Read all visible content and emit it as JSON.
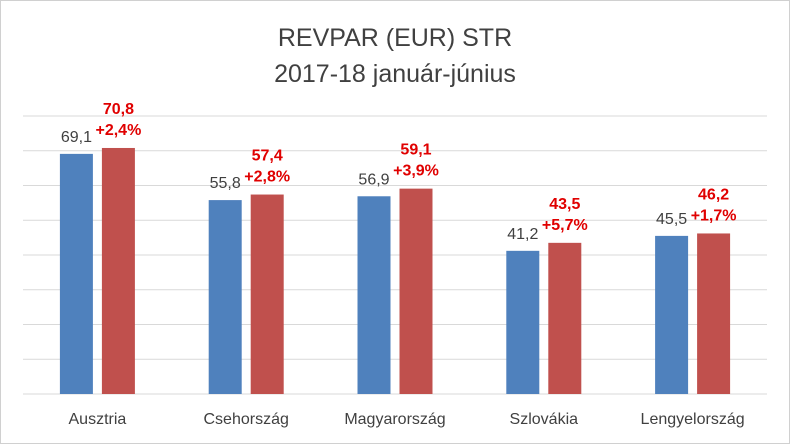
{
  "chart_data": {
    "type": "bar",
    "title": "REVPAR (EUR) STR",
    "subtitle": "2017-18 január-június",
    "categories": [
      "Ausztria",
      "Csehország",
      "Magyarország",
      "Szlovákia",
      "Lengyelország"
    ],
    "series": [
      {
        "values": [
          69.1,
          55.8,
          56.9,
          41.2,
          45.5
        ],
        "labels": [
          "69,1",
          "55,8",
          "56,9",
          "41,2",
          "45,5"
        ],
        "color": "#4f81bd"
      },
      {
        "values": [
          70.8,
          57.4,
          59.1,
          43.5,
          46.2
        ],
        "labels": [
          "70,8",
          "57,4",
          "59,1",
          "43,5",
          "46,2"
        ],
        "change_labels": [
          "+2,4%",
          "+2,8%",
          "+3,9%",
          "+5,7%",
          "+1,7%"
        ],
        "color": "#c0504d"
      }
    ],
    "ylim": [
      0,
      80
    ],
    "grid": true,
    "grid_color": "#d9d9d9",
    "label_color": "#404040",
    "highlight_label_color": "#e00000"
  }
}
